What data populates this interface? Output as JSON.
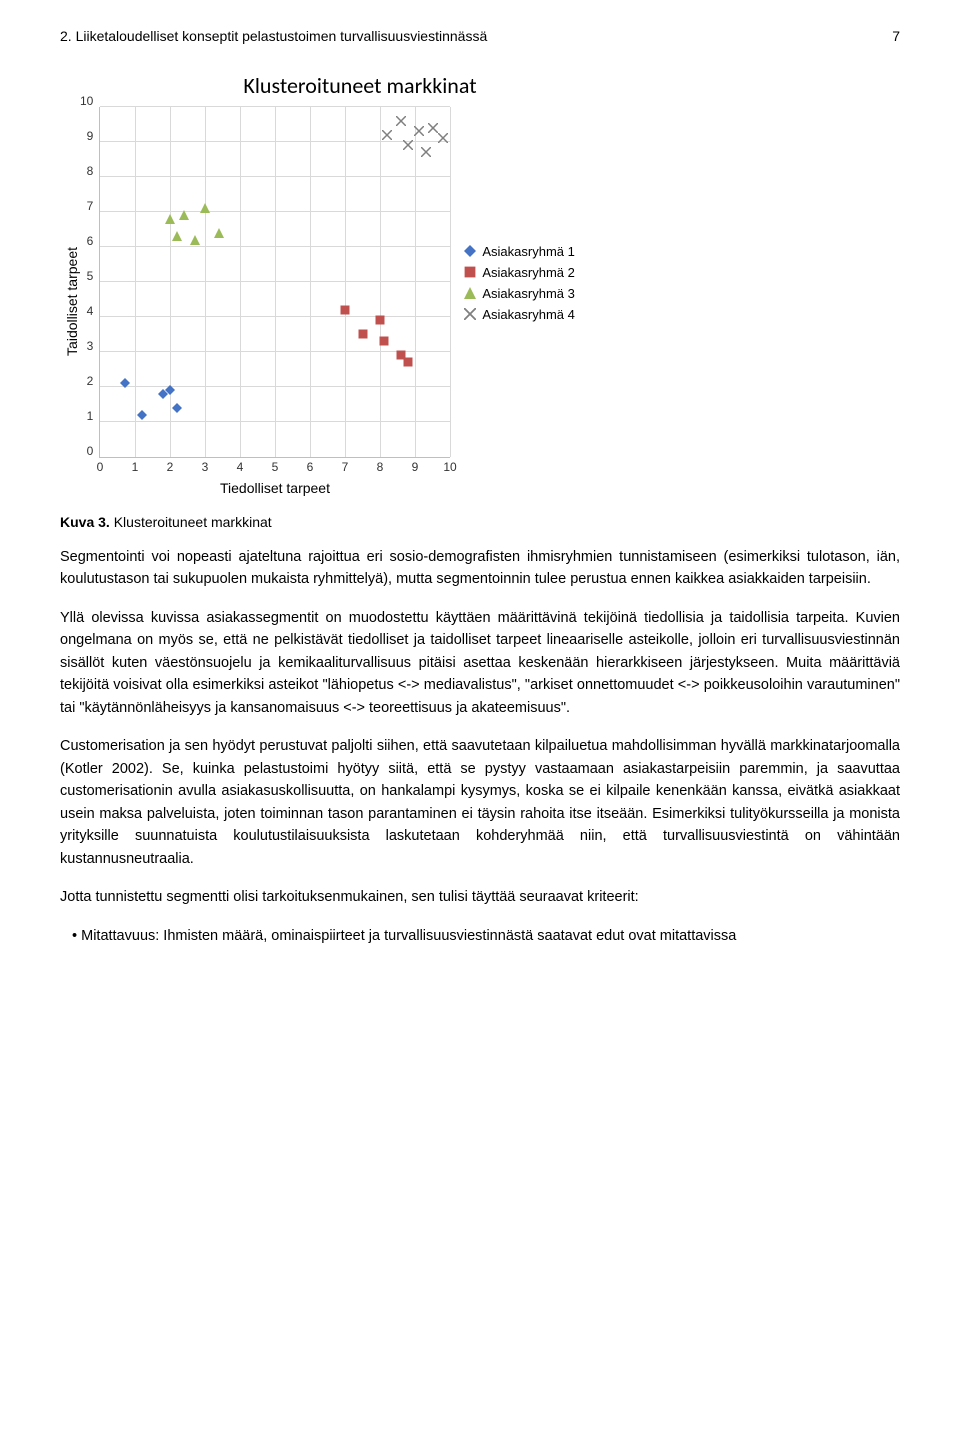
{
  "header": {
    "title": "2. Liiketaloudelliset konseptit pelastustoimen turvallisuusviestinnässä",
    "page_number": "7"
  },
  "chart": {
    "type": "scatter",
    "title": "Klusteroituneet markkinat",
    "title_fontsize": 22,
    "xlabel": "Tiedolliset tarpeet",
    "ylabel": "Taidolliset tarpeet",
    "label_fontsize": 14,
    "xlim": [
      0,
      10
    ],
    "ylim": [
      0,
      10
    ],
    "tick_step": 1,
    "background_color": "#ffffff",
    "grid_color": "#d9d9d9",
    "axis_color": "#bfbfbf",
    "marker_size": 10,
    "series": [
      {
        "name": "Asiakasryhmä 1",
        "marker": "diamond",
        "color": "#4472c4",
        "points": [
          [
            0.7,
            2.2
          ],
          [
            1.2,
            1.3
          ],
          [
            1.8,
            1.9
          ],
          [
            2.0,
            2.0
          ],
          [
            2.2,
            1.5
          ]
        ]
      },
      {
        "name": "Asiakasryhmä 2",
        "marker": "square",
        "color": "#c0504d",
        "points": [
          [
            7.0,
            4.3
          ],
          [
            7.5,
            3.6
          ],
          [
            8.0,
            4.0
          ],
          [
            8.1,
            3.4
          ],
          [
            8.6,
            3.0
          ],
          [
            8.8,
            2.8
          ]
        ]
      },
      {
        "name": "Asiakasryhmä 3",
        "marker": "triangle",
        "color": "#9bbb59",
        "points": [
          [
            2.0,
            6.9
          ],
          [
            2.2,
            6.4
          ],
          [
            2.4,
            7.0
          ],
          [
            2.7,
            6.3
          ],
          [
            3.0,
            7.2
          ],
          [
            3.4,
            6.5
          ]
        ]
      },
      {
        "name": "Asiakasryhmä 4",
        "marker": "x",
        "color": "#7f7f7f",
        "points": [
          [
            8.2,
            9.3
          ],
          [
            8.6,
            9.7
          ],
          [
            8.8,
            9.0
          ],
          [
            9.1,
            9.4
          ],
          [
            9.3,
            8.8
          ],
          [
            9.5,
            9.5
          ],
          [
            9.8,
            9.2
          ]
        ]
      }
    ]
  },
  "caption": {
    "label": "Kuva 3.",
    "text": "Klusteroituneet markkinat"
  },
  "paragraphs": {
    "p1": "Segmentointi voi nopeasti ajateltuna rajoittua eri sosio-demografisten ihmisryhmien tunnistamiseen (esimerkiksi tulotason, iän, koulutustason tai sukupuolen mukaista ryhmittelyä), mutta segmentoinnin tulee perustua ennen kaikkea asiakkaiden tarpeisiin.",
    "p2": "Yllä olevissa kuvissa asiakassegmentit on muodostettu käyttäen määrittävinä tekijöinä tiedollisia ja taidollisia tarpeita. Kuvien ongelmana on myös se, että ne pelkistävät tiedolliset ja taidolliset tarpeet lineaariselle asteikolle, jolloin eri turvallisuusviestinnän sisällöt kuten väestönsuojelu ja kemikaaliturvallisuus pitäisi asettaa keskenään hierarkkiseen järjestykseen. Muita määrittäviä tekijöitä voisivat olla esimerkiksi asteikot \"lähiopetus <-> mediavalistus\", \"arkiset onnettomuudet <-> poikkeusoloihin varautuminen\" tai \"käytännönläheisyys ja kansanomaisuus <-> teoreettisuus ja akateemisuus\".",
    "p3": "Customerisation ja sen hyödyt perustuvat paljolti siihen, että saavutetaan kilpailuetua mahdollisimman hyvällä markkinatarjoomalla (Kotler 2002). Se, kuinka pelastustoimi hyötyy siitä, että se pystyy vastaamaan asiakastarpeisiin paremmin, ja saavuttaa customerisationin avulla asiakasuskollisuutta, on hankalampi kysymys, koska se ei kilpaile kenenkään kanssa, eivätkä asiakkaat usein maksa palveluista, joten toiminnan tason parantaminen ei täysin rahoita itse itseään. Esimerkiksi tulityökursseilla ja monista yrityksille suunnatuista koulutustilaisuuksista laskutetaan kohderyhmää niin, että turvallisuusviestintä on vähintään kustannusneutraalia.",
    "p4": "Jotta tunnistettu segmentti olisi tarkoituksenmukainen, sen tulisi täyttää seuraavat kriteerit:",
    "b1": "Mitattavuus: Ihmisten määrä, ominaispiirteet ja turvallisuusviestinnästä saatavat edut ovat mitattavissa"
  }
}
